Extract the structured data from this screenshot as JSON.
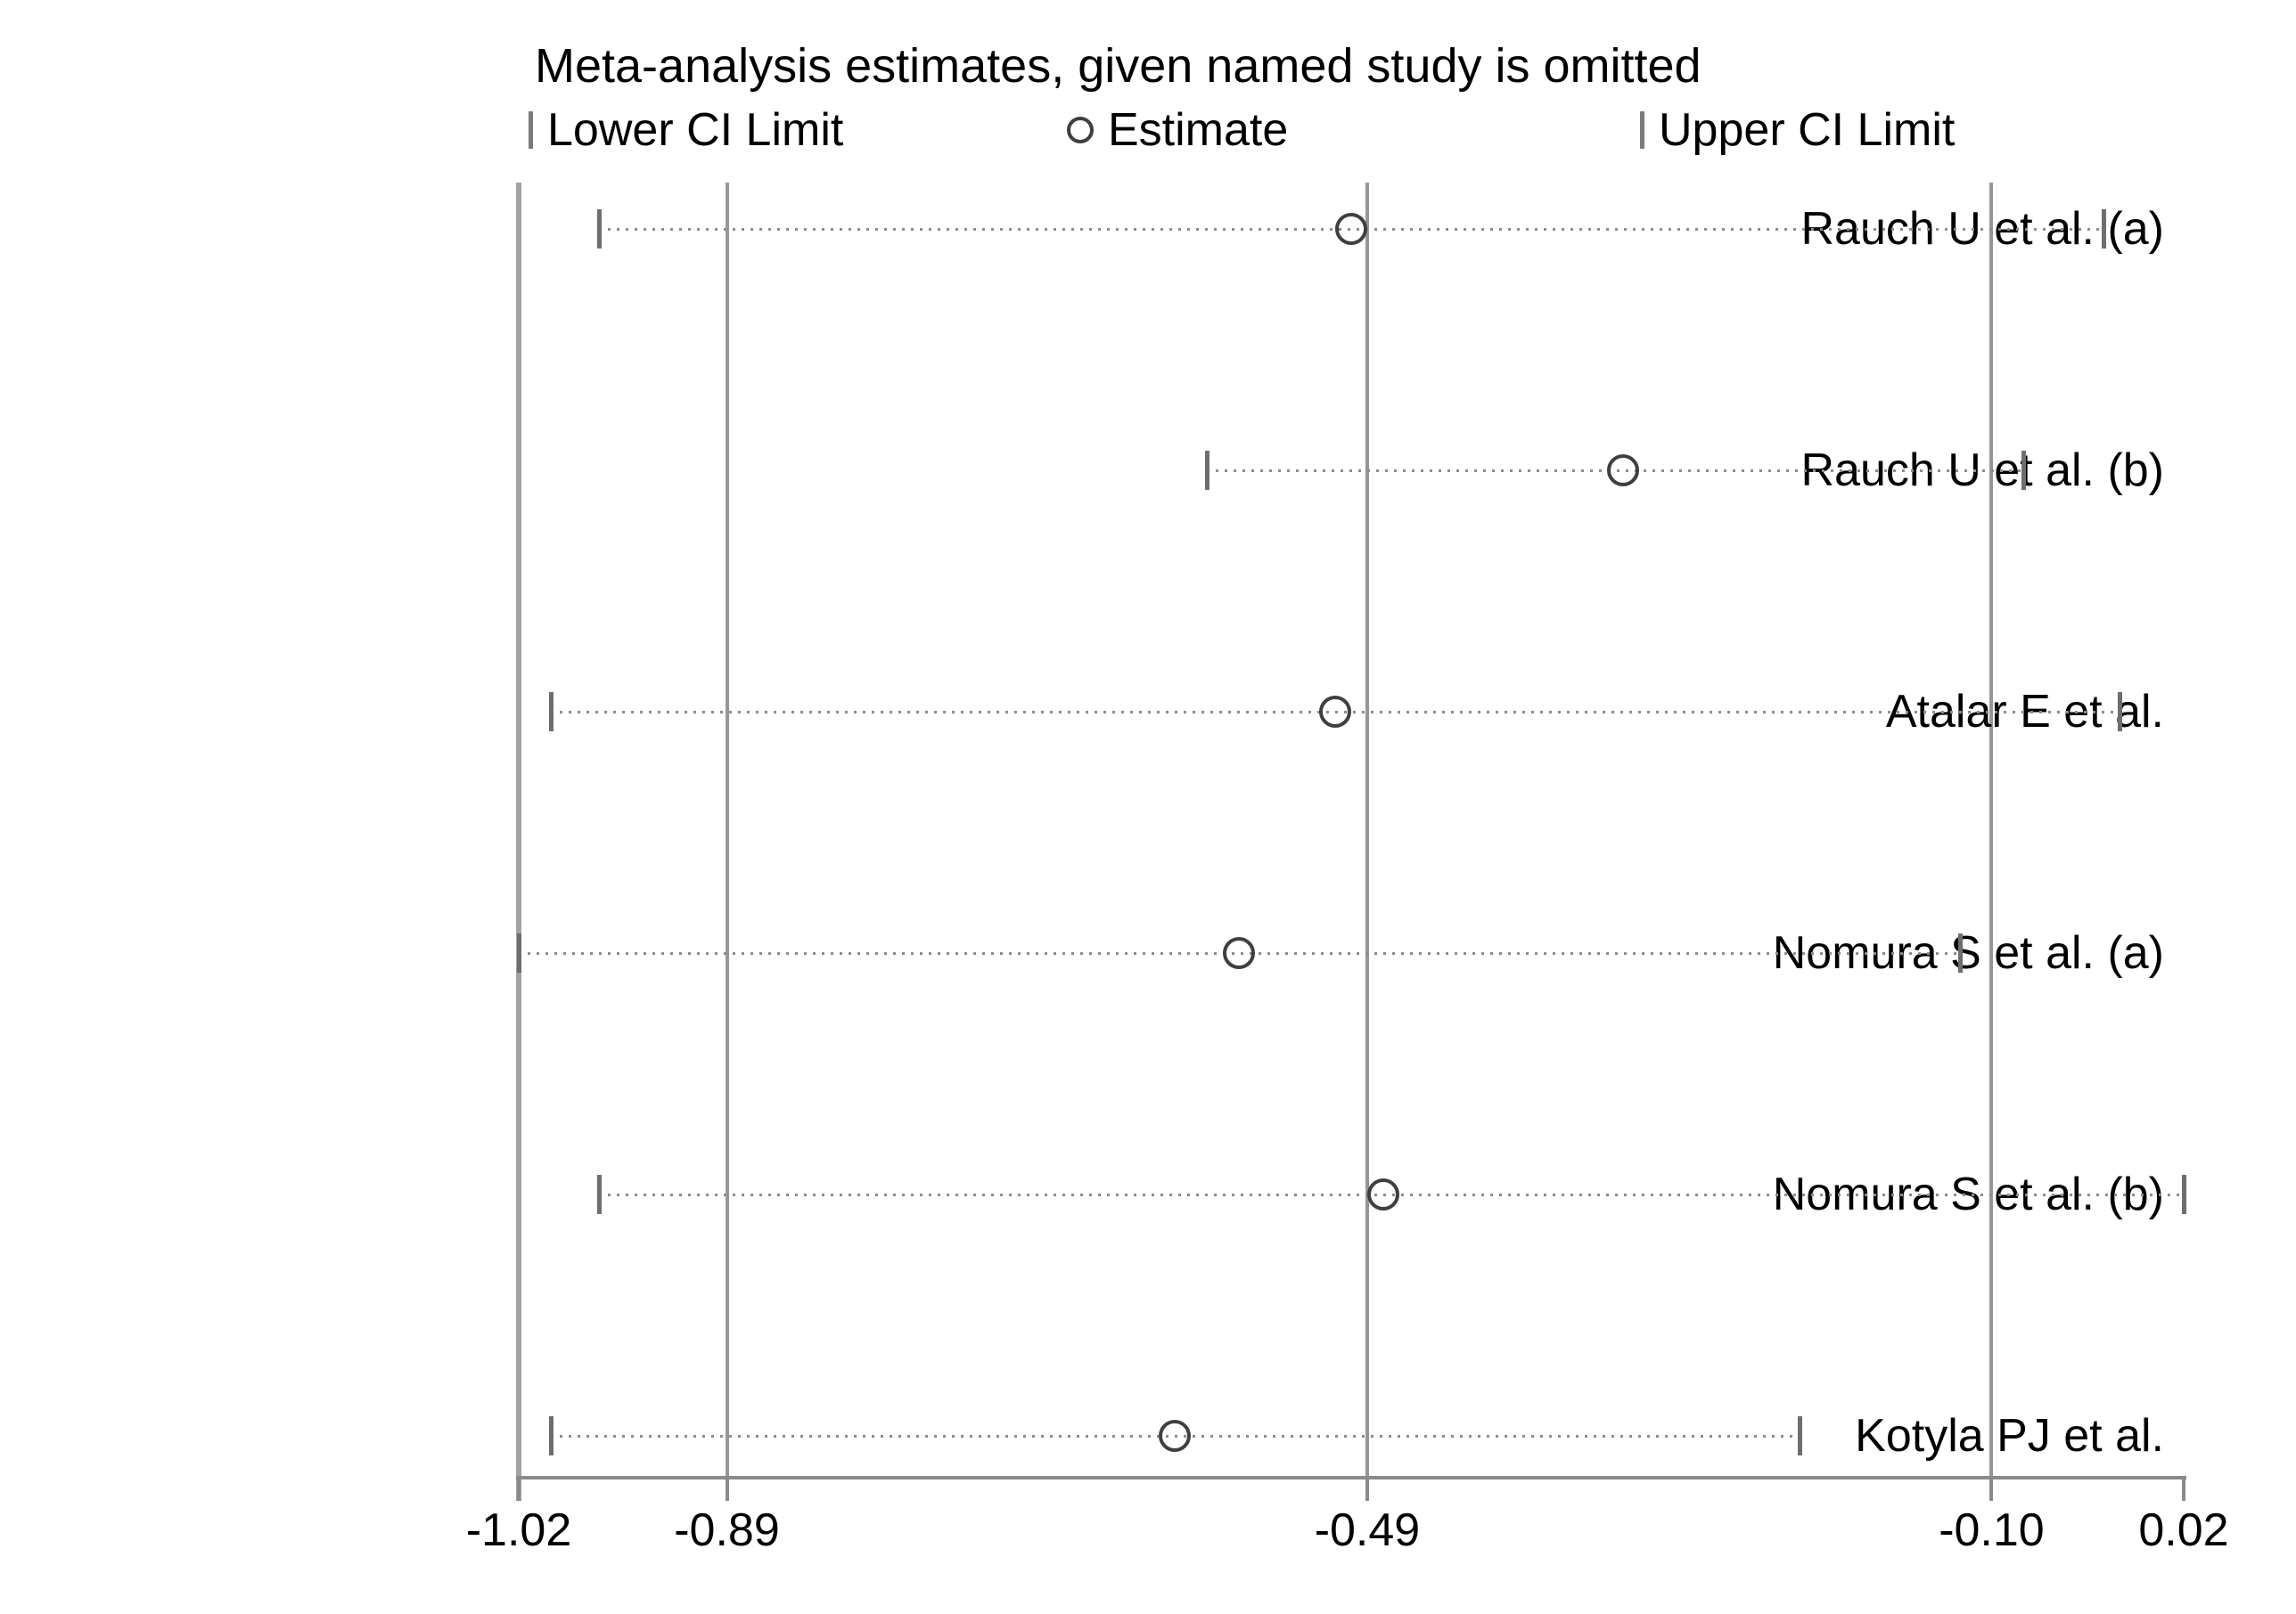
{
  "title": "Meta-analysis estimates, given named study is omitted",
  "legend": [
    {
      "symbol": "bar",
      "label": "Lower CI Limit"
    },
    {
      "symbol": "circle",
      "label": "Estimate"
    },
    {
      "symbol": "bar",
      "label": "Upper CI Limit"
    }
  ],
  "colors": {
    "text": "#000000",
    "frame": "#a3a3a3",
    "reference_lines": "#969696",
    "axis": "#8a8a8a",
    "dotted_line": "#8c8c8c",
    "ci_marker": "#6e6e6e",
    "estimate_stroke": "#3f3f3f"
  },
  "chart_data": {
    "type": "scatter",
    "subtype": "leave-one-out-sensitivity-forest",
    "title": "Meta-analysis estimates, given named study is omitted",
    "studies": [
      "Rauch U et al. (a)",
      "Rauch U et al. (b)",
      "Atalar E et al.",
      "Nomura S et al. (a)",
      "Nomura S et al. (b)",
      "Kotyla PJ et al."
    ],
    "series": [
      {
        "name": "Lower CI Limit",
        "values": [
          -0.97,
          -0.59,
          -1.0,
          -1.02,
          -0.97,
          -1.0
        ]
      },
      {
        "name": "Estimate",
        "values": [
          -0.5,
          -0.33,
          -0.51,
          -0.57,
          -0.48,
          -0.61
        ]
      },
      {
        "name": "Upper CI Limit",
        "values": [
          -0.03,
          -0.08,
          -0.02,
          -0.12,
          0.02,
          -0.22
        ]
      }
    ],
    "xlim": [
      -1.02,
      0.02
    ],
    "x_ticks": [
      -1.02,
      -0.89,
      -0.49,
      -0.1,
      0.02
    ],
    "x_tick_labels": [
      "-1.02",
      "-0.89",
      "-0.49",
      "-0.10",
      "0.02"
    ],
    "reference_lines": [
      -0.89,
      -0.49,
      -0.1
    ],
    "xlabel": "",
    "ylabel": "",
    "grid": "off",
    "legend_position": "top"
  }
}
